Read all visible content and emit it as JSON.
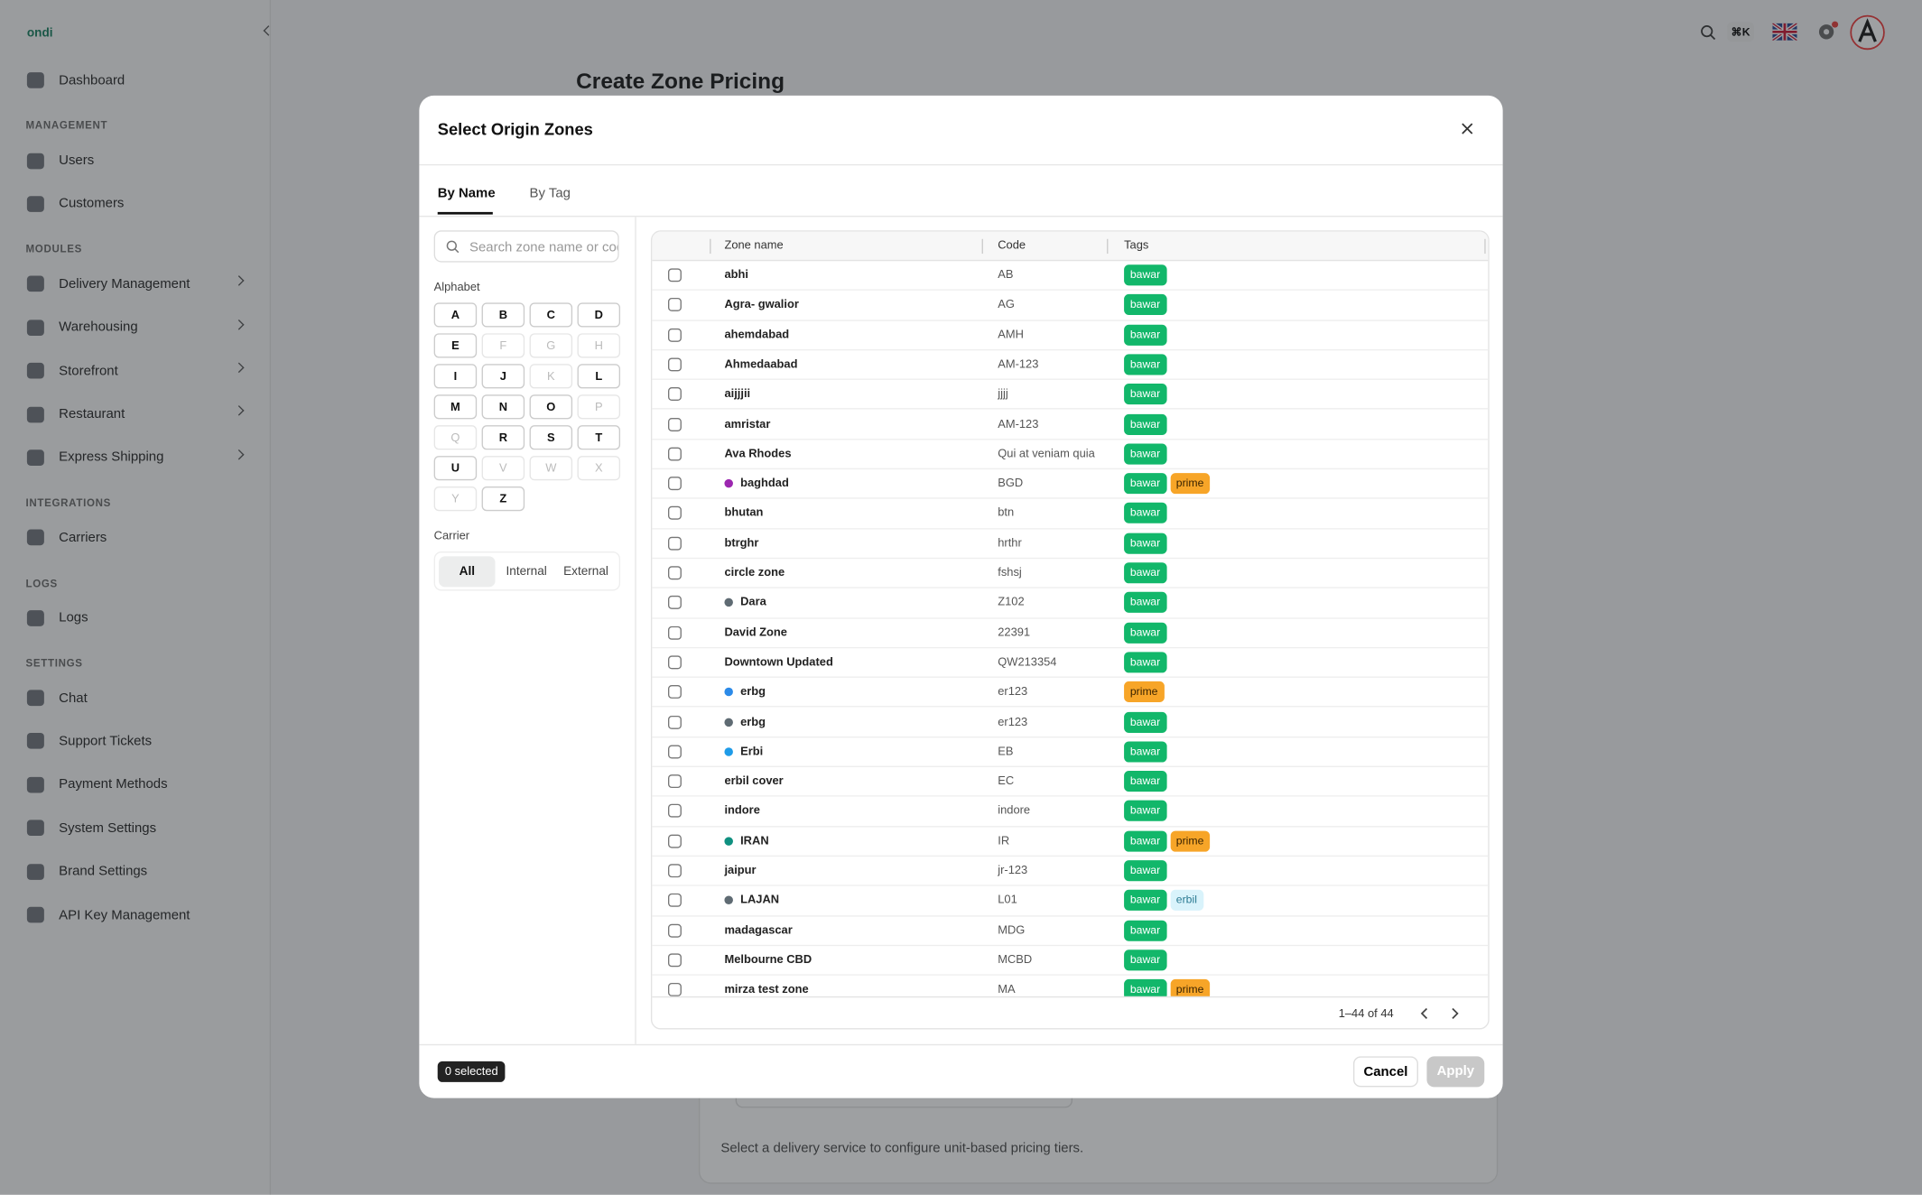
{
  "sidebar": {
    "logo": "ondi",
    "nav": [
      {
        "items": [
          {
            "label": "Dashboard"
          }
        ]
      },
      {
        "section": "MANAGEMENT",
        "items": [
          {
            "label": "Users"
          },
          {
            "label": "Customers"
          }
        ]
      },
      {
        "section": "MODULES",
        "items": [
          {
            "label": "Delivery Management",
            "submenu": true
          },
          {
            "label": "Warehousing",
            "submenu": true
          },
          {
            "label": "Storefront",
            "submenu": true
          },
          {
            "label": "Restaurant",
            "submenu": true
          },
          {
            "label": "Express Shipping",
            "submenu": true
          }
        ]
      },
      {
        "section": "INTEGRATIONS",
        "items": [
          {
            "label": "Carriers"
          }
        ]
      },
      {
        "section": "LOGS",
        "items": [
          {
            "label": "Logs"
          }
        ]
      },
      {
        "section": "SETTINGS",
        "items": [
          {
            "label": "Chat"
          },
          {
            "label": "Support Tickets"
          },
          {
            "label": "Payment Methods"
          },
          {
            "label": "System Settings"
          },
          {
            "label": "Brand Settings"
          },
          {
            "label": "API Key Management"
          }
        ]
      }
    ]
  },
  "header": {
    "shortcut": "⌘K"
  },
  "page": {
    "title": "Create Zone Pricing",
    "hint": "Select a delivery service to configure unit-based pricing tiers."
  },
  "modal": {
    "title": "Select Origin Zones",
    "tabs": [
      "By Name",
      "By Tag"
    ],
    "active_tab": 0,
    "search_placeholder": "Search zone name or code",
    "alphabet_label": "Alphabet",
    "letters": [
      {
        "l": "A",
        "on": true
      },
      {
        "l": "B",
        "on": true
      },
      {
        "l": "C",
        "on": true
      },
      {
        "l": "D",
        "on": true
      },
      {
        "l": "E",
        "on": true
      },
      {
        "l": "F",
        "on": false
      },
      {
        "l": "G",
        "on": false
      },
      {
        "l": "H",
        "on": false
      },
      {
        "l": "I",
        "on": true
      },
      {
        "l": "J",
        "on": true
      },
      {
        "l": "K",
        "on": false
      },
      {
        "l": "L",
        "on": true
      },
      {
        "l": "M",
        "on": true
      },
      {
        "l": "N",
        "on": true
      },
      {
        "l": "O",
        "on": true
      },
      {
        "l": "P",
        "on": false
      },
      {
        "l": "Q",
        "on": false
      },
      {
        "l": "R",
        "on": true
      },
      {
        "l": "S",
        "on": true
      },
      {
        "l": "T",
        "on": true
      },
      {
        "l": "U",
        "on": true
      },
      {
        "l": "V",
        "on": false
      },
      {
        "l": "W",
        "on": false
      },
      {
        "l": "X",
        "on": false
      },
      {
        "l": "Y",
        "on": false
      },
      {
        "l": "Z",
        "on": true
      }
    ],
    "carrier_label": "Carrier",
    "carrier_options": [
      "All",
      "Internal",
      "External"
    ],
    "carrier_active": 0,
    "columns": [
      "Zone name",
      "Code",
      "Tags"
    ],
    "tag_colors": {
      "bawar": [
        "#12b76a",
        "#ffffff"
      ],
      "prime": [
        "#f7a528",
        "#3a2300"
      ],
      "erbil": [
        "#d9f3fb",
        "#2a7a92"
      ]
    },
    "rows": [
      {
        "name": "abhi",
        "code": "AB",
        "tags": [
          "bawar"
        ]
      },
      {
        "name": "Agra- gwalior",
        "code": "AG",
        "tags": [
          "bawar"
        ]
      },
      {
        "name": "ahemdabad",
        "code": "AMH",
        "tags": [
          "bawar"
        ]
      },
      {
        "name": "Ahmedaabad",
        "code": "AM-123",
        "tags": [
          "bawar"
        ]
      },
      {
        "name": "aijjjii",
        "code": "jjjj",
        "tags": [
          "bawar"
        ]
      },
      {
        "name": "amristar",
        "code": "AM-123",
        "tags": [
          "bawar"
        ]
      },
      {
        "name": "Ava Rhodes",
        "code": "Qui at veniam quia",
        "tags": [
          "bawar"
        ]
      },
      {
        "name": "baghdad",
        "dot": "#9c27b0",
        "code": "BGD",
        "tags": [
          "bawar",
          "prime"
        ]
      },
      {
        "name": "bhutan",
        "code": "btn",
        "tags": [
          "bawar"
        ]
      },
      {
        "name": "btrghr",
        "code": "hrthr",
        "tags": [
          "bawar"
        ]
      },
      {
        "name": "circle zone",
        "code": "fshsj",
        "tags": [
          "bawar"
        ]
      },
      {
        "name": "Dara",
        "dot": "#5f6b73",
        "code": "Z102",
        "tags": [
          "bawar"
        ]
      },
      {
        "name": "David Zone",
        "code": "22391",
        "tags": [
          "bawar"
        ]
      },
      {
        "name": "Downtown Updated",
        "code": "QW213354",
        "tags": [
          "bawar"
        ]
      },
      {
        "name": "erbg",
        "dot": "#2b8ae8",
        "code": "er123",
        "tags": [
          "prime"
        ]
      },
      {
        "name": "erbg",
        "dot": "#5f6b73",
        "code": "er123",
        "tags": [
          "bawar"
        ]
      },
      {
        "name": "Erbi",
        "dot": "#1e9be8",
        "code": "EB",
        "tags": [
          "bawar"
        ]
      },
      {
        "name": "erbil cover",
        "code": "EC",
        "tags": [
          "bawar"
        ]
      },
      {
        "name": "indore",
        "code": "indore",
        "tags": [
          "bawar"
        ]
      },
      {
        "name": "IRAN",
        "dot": "#0f9080",
        "code": "IR",
        "tags": [
          "bawar",
          "prime"
        ]
      },
      {
        "name": "jaipur",
        "code": "jr-123",
        "tags": [
          "bawar"
        ]
      },
      {
        "name": "LAJAN",
        "dot": "#5f6b73",
        "code": "L01",
        "tags": [
          "bawar",
          "erbil"
        ]
      },
      {
        "name": "madagascar",
        "code": "MDG",
        "tags": [
          "bawar"
        ]
      },
      {
        "name": "Melbourne CBD",
        "code": "MCBD",
        "tags": [
          "bawar"
        ]
      },
      {
        "name": "mirza test zone",
        "code": "MA",
        "tags": [
          "bawar",
          "prime"
        ]
      }
    ],
    "pagination": "1–44 of 44",
    "selected": "0 selected",
    "cancel": "Cancel",
    "apply": "Apply"
  }
}
